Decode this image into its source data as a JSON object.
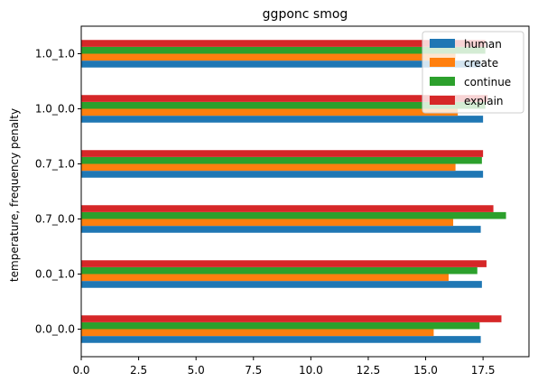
{
  "chart_data": {
    "type": "bar",
    "orientation": "horizontal",
    "title": "ggponc smog",
    "xlabel": "",
    "ylabel": "temperature, frequency penalty",
    "categories": [
      "0.0_0.0",
      "0.0_1.0",
      "0.7_0.0",
      "0.7_1.0",
      "1.0_0.0",
      "1.0_1.0"
    ],
    "xlim": [
      0,
      19.5
    ],
    "xticks": [
      "0.0",
      "2.5",
      "5.0",
      "7.5",
      "10.0",
      "12.5",
      "15.0",
      "17.5"
    ],
    "grid": false,
    "legend_position": "top-right",
    "series": [
      {
        "name": "human",
        "color": "#1f77b4",
        "values": [
          17.4,
          17.45,
          17.4,
          17.5,
          17.5,
          17.4
        ]
      },
      {
        "name": "create",
        "color": "#ff7f0e",
        "values": [
          15.35,
          16.0,
          16.2,
          16.3,
          16.4,
          16.3
        ]
      },
      {
        "name": "continue",
        "color": "#2ca02c",
        "values": [
          17.35,
          17.25,
          18.5,
          17.45,
          17.6,
          17.6
        ]
      },
      {
        "name": "explain",
        "color": "#d62728",
        "values": [
          18.3,
          17.65,
          17.95,
          17.5,
          17.7,
          17.6
        ]
      }
    ]
  }
}
